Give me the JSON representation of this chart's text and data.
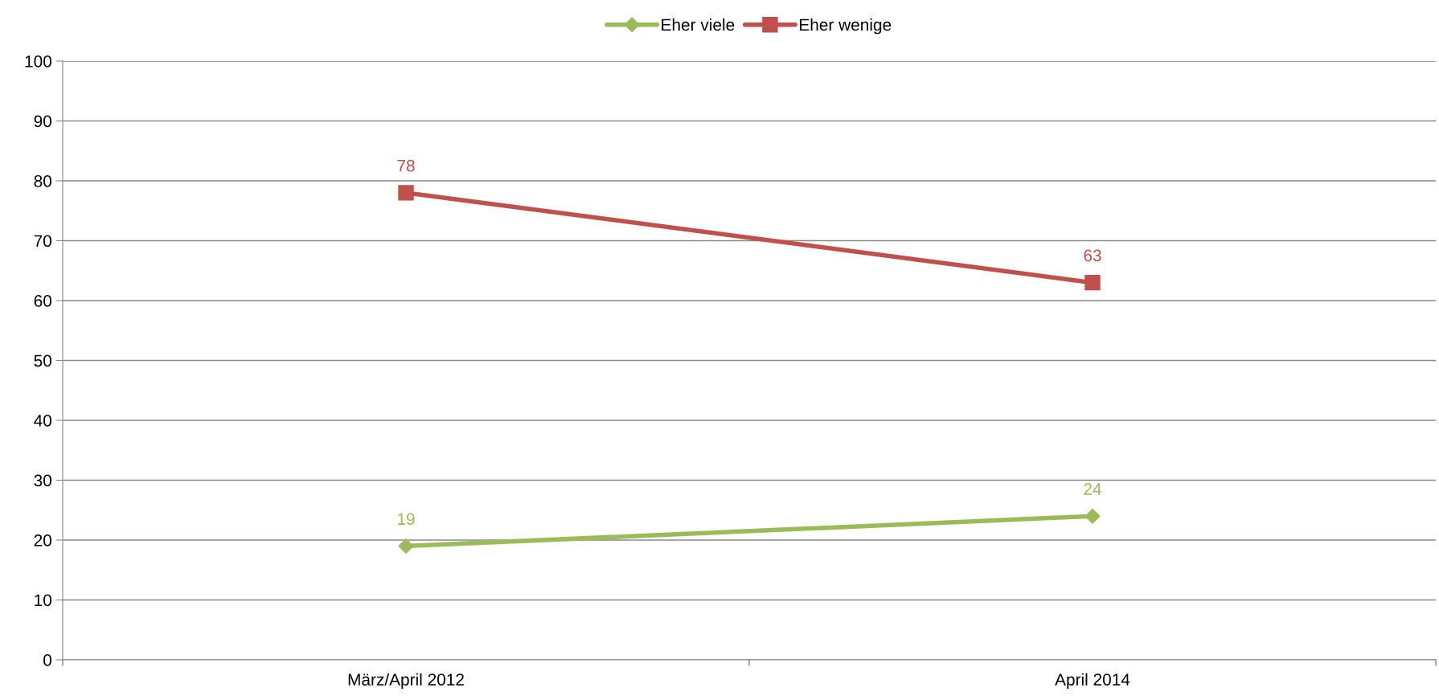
{
  "chart_data": {
    "type": "line",
    "categories": [
      "März/April 2012",
      "April 2014"
    ],
    "series": [
      {
        "name": "Eher viele",
        "color": "#9bbb59",
        "marker": "diamond",
        "values": [
          19,
          24
        ]
      },
      {
        "name": "Eher wenige",
        "color": "#c0504d",
        "marker": "square",
        "values": [
          78,
          63
        ]
      }
    ],
    "ylim": [
      0,
      100
    ],
    "yticks": [
      0,
      10,
      20,
      30,
      40,
      50,
      60,
      70,
      80,
      90,
      100
    ],
    "grid": "y",
    "legend": "top",
    "data_labels": true,
    "line_style": "solid"
  }
}
